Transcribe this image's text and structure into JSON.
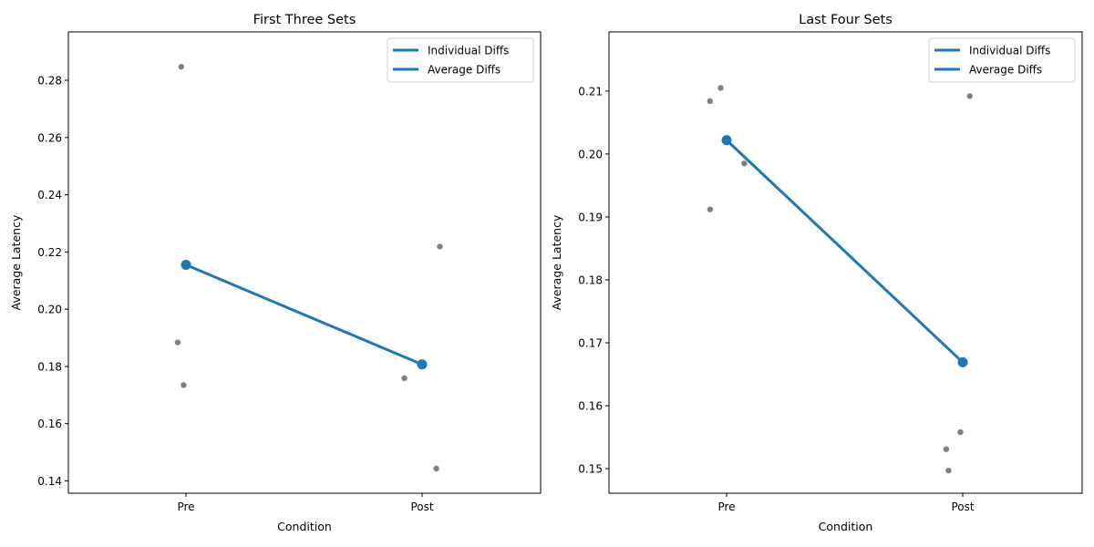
{
  "colors": {
    "line": "#1f77b4",
    "point": "#1f77b4",
    "individual": "#808080",
    "axis": "#000000",
    "background": "#ffffff"
  },
  "chart_data": [
    {
      "type": "scatter",
      "title": "First Three Sets",
      "xlabel": "Condition",
      "ylabel": "Average Latency",
      "categories": [
        "Pre",
        "Post"
      ],
      "ylim": [
        0.1357,
        0.2969
      ],
      "yticks": [
        0.14,
        0.16,
        0.18,
        0.2,
        0.22,
        0.24,
        0.26,
        0.28
      ],
      "ytick_labels": [
        "0.14",
        "0.16",
        "0.18",
        "0.20",
        "0.22",
        "0.24",
        "0.26",
        "0.28"
      ],
      "grid": false,
      "legend": {
        "position": "top-right",
        "entries": [
          "Individual Diffs",
          "Average Diffs"
        ]
      },
      "individual_points": [
        {
          "condition": "Pre",
          "jitter": -0.02,
          "y": 0.2847
        },
        {
          "condition": "Pre",
          "jitter": -0.035,
          "y": 0.1884
        },
        {
          "condition": "Pre",
          "jitter": -0.01,
          "y": 0.1735
        },
        {
          "condition": "Post",
          "jitter": -0.075,
          "y": 0.1759
        },
        {
          "condition": "Post",
          "jitter": 0.075,
          "y": 0.2219
        },
        {
          "condition": "Post",
          "jitter": 0.06,
          "y": 0.1443
        }
      ],
      "series": [
        {
          "name": "Average Diffs",
          "values": [
            0.2155,
            0.1807
          ]
        }
      ]
    },
    {
      "type": "scatter",
      "title": "Last Four Sets",
      "xlabel": "Condition",
      "ylabel": "Average Latency",
      "categories": [
        "Pre",
        "Post"
      ],
      "ylim": [
        0.1461,
        0.2194
      ],
      "yticks": [
        0.15,
        0.16,
        0.17,
        0.18,
        0.19,
        0.2,
        0.21
      ],
      "ytick_labels": [
        "0.15",
        "0.16",
        "0.17",
        "0.18",
        "0.19",
        "0.20",
        "0.21"
      ],
      "grid": false,
      "legend": {
        "position": "top-right",
        "entries": [
          "Individual Diffs",
          "Average Diffs"
        ]
      },
      "individual_points": [
        {
          "condition": "Pre",
          "jitter": -0.025,
          "y": 0.2105
        },
        {
          "condition": "Pre",
          "jitter": -0.07,
          "y": 0.2084
        },
        {
          "condition": "Pre",
          "jitter": 0.075,
          "y": 0.1985
        },
        {
          "condition": "Pre",
          "jitter": -0.07,
          "y": 0.1912
        },
        {
          "condition": "Post",
          "jitter": 0.03,
          "y": 0.2092
        },
        {
          "condition": "Post",
          "jitter": -0.01,
          "y": 0.1558
        },
        {
          "condition": "Post",
          "jitter": -0.07,
          "y": 0.1531
        },
        {
          "condition": "Post",
          "jitter": -0.06,
          "y": 0.1497
        }
      ],
      "series": [
        {
          "name": "Average Diffs",
          "values": [
            0.2022,
            0.1669
          ]
        }
      ]
    }
  ]
}
